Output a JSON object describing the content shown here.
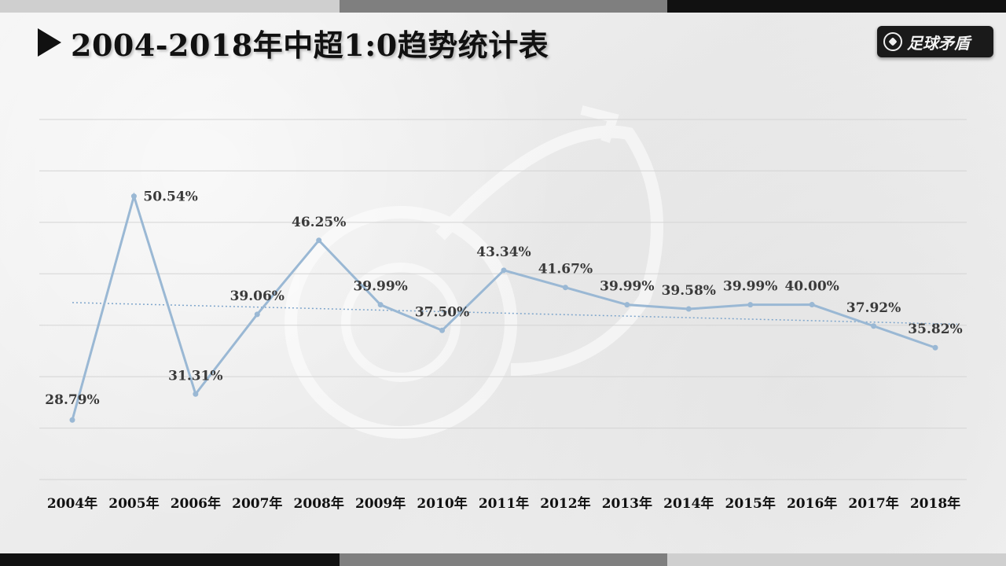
{
  "page": {
    "title": "2004-2018年中超1:0趋势统计表",
    "logo_text": "足球矛盾"
  },
  "colors": {
    "line": "#9ab8d4",
    "trend": "#7fa6cc",
    "grid": "#d4d4d4",
    "bar_dark": "#111111",
    "bar_mid": "#7f7f7f",
    "bar_light": "#cfcfcf"
  },
  "chart_data": {
    "type": "line",
    "title": "2004-2018年中超1:0趋势统计表",
    "categories": [
      "2004年",
      "2005年",
      "2006年",
      "2007年",
      "2008年",
      "2009年",
      "2010年",
      "2011年",
      "2012年",
      "2013年",
      "2014年",
      "2015年",
      "2016年",
      "2017年",
      "2018年"
    ],
    "values": [
      28.79,
      50.54,
      31.31,
      39.06,
      46.25,
      39.99,
      37.5,
      43.34,
      41.67,
      39.99,
      39.58,
      39.99,
      40.0,
      37.92,
      35.82
    ],
    "value_labels": [
      "28.79%",
      "50.54%",
      "31.31%",
      "39.06%",
      "46.25%",
      "39.99%",
      "37.50%",
      "43.34%",
      "41.67%",
      "39.99%",
      "39.58%",
      "39.99%",
      "40.00%",
      "37.92%",
      "35.82%"
    ],
    "trendline": {
      "type": "linear",
      "start": 40.2,
      "end": 38.1
    },
    "ylim": [
      23,
      58
    ],
    "grid": true,
    "legend": "none"
  }
}
